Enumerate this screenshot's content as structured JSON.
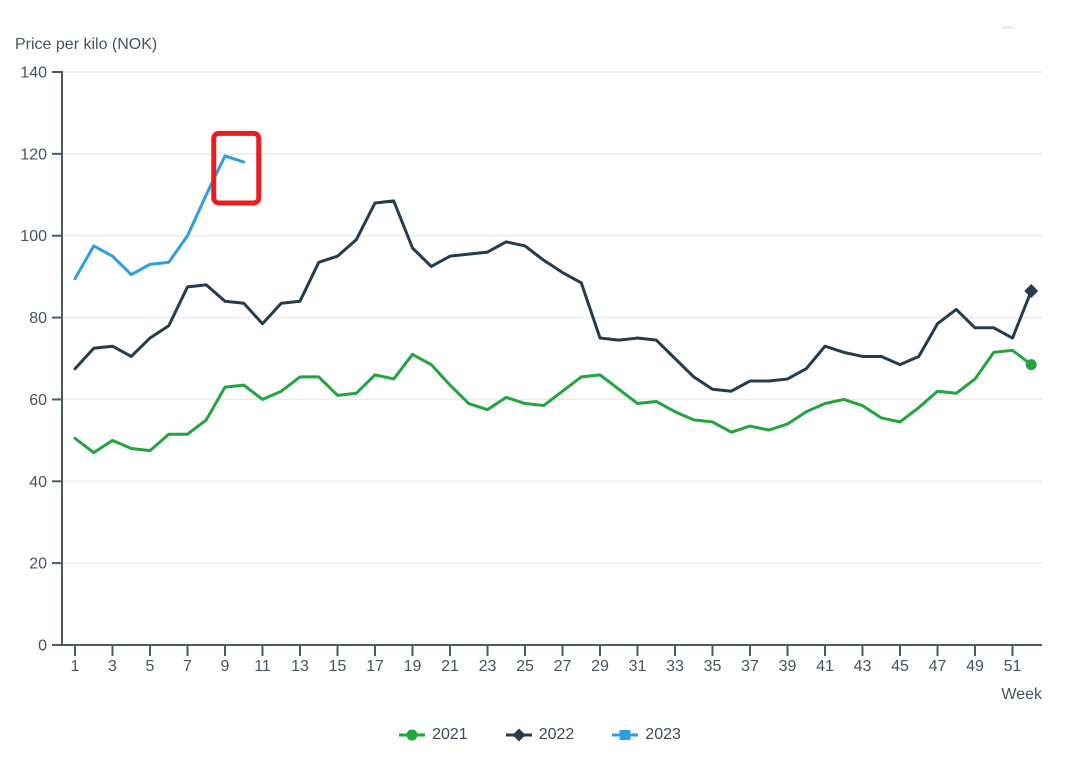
{
  "colors": {
    "background": "#ffffff",
    "grid": "#ebebeb",
    "axis": "#4e5a66",
    "text": "#47535f",
    "legend_text": "#3e4a56"
  },
  "chart_data": {
    "type": "line",
    "title": "Price per kilo (NOK)",
    "xlabel": "Week",
    "ylabel": "Price per kilo (NOK)",
    "ylim": [
      0,
      140
    ],
    "ytick_step": 20,
    "yticks": [
      0,
      20,
      40,
      60,
      80,
      100,
      120,
      140
    ],
    "xticks": [
      1,
      3,
      5,
      7,
      9,
      11,
      13,
      15,
      17,
      19,
      21,
      23,
      25,
      27,
      29,
      31,
      33,
      35,
      37,
      39,
      41,
      43,
      45,
      47,
      49,
      51
    ],
    "xlim": [
      1,
      52
    ],
    "grid": true,
    "legend_position": "bottom-center",
    "series": [
      {
        "name": "2021",
        "color": "#22a43e",
        "legend_marker": "circle",
        "end_marker": "circle",
        "x": [
          1,
          2,
          3,
          4,
          5,
          6,
          7,
          8,
          9,
          10,
          11,
          12,
          13,
          14,
          15,
          16,
          17,
          18,
          19,
          20,
          21,
          22,
          23,
          24,
          25,
          26,
          27,
          28,
          29,
          30,
          31,
          32,
          33,
          34,
          35,
          36,
          37,
          38,
          39,
          40,
          41,
          42,
          43,
          44,
          45,
          46,
          47,
          48,
          49,
          50,
          51,
          52
        ],
        "values": [
          50.5,
          47,
          50,
          48,
          47.5,
          51.5,
          51.5,
          55,
          63,
          63.5,
          60,
          62,
          65.5,
          65.5,
          61,
          61.5,
          66,
          65,
          71,
          68.5,
          63.5,
          59,
          57.5,
          60.5,
          59,
          58.5,
          62,
          65.5,
          66,
          62.5,
          59,
          59.5,
          57,
          55,
          54.5,
          52,
          53.5,
          52.5,
          54,
          57,
          59,
          60,
          58.5,
          55.5,
          54.5,
          58,
          62,
          61.5,
          65,
          71.5,
          72,
          68.5
        ]
      },
      {
        "name": "2022",
        "color": "#253c4d",
        "legend_marker": "diamond",
        "end_marker": "diamond",
        "x": [
          1,
          2,
          3,
          4,
          5,
          6,
          7,
          8,
          9,
          10,
          11,
          12,
          13,
          14,
          15,
          16,
          17,
          18,
          19,
          20,
          21,
          22,
          23,
          24,
          25,
          26,
          27,
          28,
          29,
          30,
          31,
          32,
          33,
          34,
          35,
          36,
          37,
          38,
          39,
          40,
          41,
          42,
          43,
          44,
          45,
          46,
          47,
          48,
          49,
          50,
          51,
          52
        ],
        "values": [
          67.5,
          72.5,
          73,
          70.5,
          75,
          78,
          87.5,
          88,
          84,
          83.5,
          78.5,
          83.5,
          84,
          93.5,
          95,
          99,
          108,
          108.5,
          97,
          92.5,
          95,
          95.5,
          96,
          98.5,
          97.5,
          94,
          91,
          88.5,
          75,
          74.5,
          75,
          74.5,
          70,
          65.5,
          62.5,
          62,
          64.5,
          64.5,
          65,
          67.5,
          73,
          71.5,
          70.5,
          70.5,
          68.5,
          70.5,
          78.5,
          82,
          77.5,
          77.5,
          75,
          86.5
        ]
      },
      {
        "name": "2023",
        "color": "#2f9de2",
        "legend_marker": "square",
        "end_marker": "none",
        "x": [
          1,
          2,
          3,
          4,
          5,
          6,
          7,
          8,
          9,
          10
        ],
        "values": [
          89.5,
          97.5,
          95,
          90.5,
          93,
          93.5,
          100,
          110,
          119.5,
          118
        ]
      }
    ],
    "annotation": {
      "shape": "rect",
      "color": "#e91e22",
      "week_from": 8.4,
      "week_to": 10.8,
      "value_from": 108,
      "value_to": 125
    }
  }
}
